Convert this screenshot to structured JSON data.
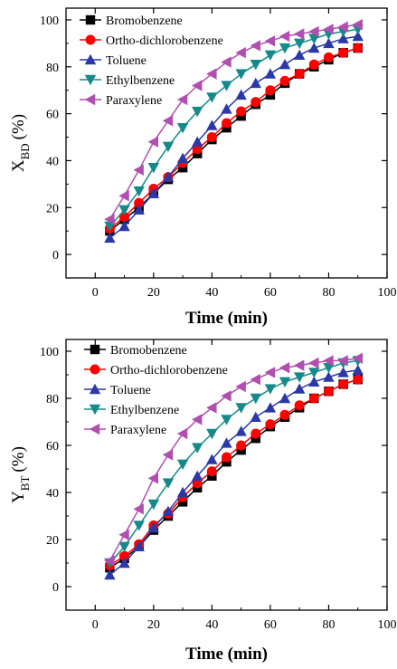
{
  "chart_data": [
    {
      "type": "line",
      "xlabel": "Time (min)",
      "ylabel_main": "X",
      "ylabel_sub": "BD",
      "ylabel_unit": "(%)",
      "xlim": [
        -10,
        100
      ],
      "ylim": [
        -10,
        105
      ],
      "xticks": [
        0,
        20,
        40,
        60,
        80,
        100
      ],
      "yticks": [
        0,
        20,
        40,
        60,
        80,
        100
      ],
      "legend_position": "top-left",
      "x": [
        5,
        10,
        15,
        20,
        25,
        30,
        35,
        40,
        45,
        50,
        55,
        60,
        65,
        70,
        75,
        80,
        85,
        90
      ],
      "series": [
        {
          "name": "Bromobenzene",
          "marker": "square",
          "color": "#000000",
          "values": [
            10,
            15,
            20,
            26,
            32,
            37,
            43,
            49,
            54,
            59,
            64,
            68,
            73,
            77,
            80,
            83,
            86,
            88
          ]
        },
        {
          "name": "Ortho-dichlorobenzene",
          "marker": "circle",
          "color": "#ff0000",
          "values": [
            11,
            16,
            22,
            28,
            33,
            39,
            45,
            50,
            56,
            61,
            65,
            70,
            74,
            77,
            81,
            84,
            86,
            88
          ]
        },
        {
          "name": "Toluene",
          "marker": "triangle-up",
          "color": "#2b39a6",
          "values": [
            7,
            12,
            19,
            26,
            33,
            41,
            48,
            55,
            62,
            68,
            73,
            77,
            81,
            85,
            88,
            90,
            92,
            93
          ]
        },
        {
          "name": "Ethylbenzene",
          "marker": "triangle-down",
          "color": "#168a8a",
          "values": [
            12,
            19,
            27,
            37,
            46,
            54,
            61,
            67,
            72,
            77,
            81,
            85,
            88,
            90,
            92,
            94,
            95,
            96
          ]
        },
        {
          "name": "Paraxylene",
          "marker": "triangle-left",
          "color": "#b04fb0",
          "values": [
            15,
            25,
            36,
            48,
            57,
            66,
            72,
            77,
            82,
            86,
            89,
            91,
            93,
            94,
            95,
            96,
            97,
            98
          ]
        }
      ]
    },
    {
      "type": "line",
      "xlabel": "Time (min)",
      "ylabel_main": "Y",
      "ylabel_sub": "BT",
      "ylabel_unit": "(%)",
      "xlim": [
        -10,
        100
      ],
      "ylim": [
        -10,
        105
      ],
      "xticks": [
        0,
        20,
        40,
        60,
        80,
        100
      ],
      "yticks": [
        0,
        20,
        40,
        60,
        80,
        100
      ],
      "legend_position": "top-left",
      "x": [
        5,
        10,
        15,
        20,
        25,
        30,
        35,
        40,
        45,
        50,
        55,
        60,
        65,
        70,
        75,
        80,
        85,
        90
      ],
      "series": [
        {
          "name": "Bromobenzene",
          "marker": "square",
          "color": "#000000",
          "values": [
            8,
            12,
            17,
            24,
            30,
            36,
            42,
            47,
            53,
            58,
            63,
            68,
            72,
            76,
            80,
            83,
            86,
            88
          ]
        },
        {
          "name": "Ortho-dichlorobenzene",
          "marker": "circle",
          "color": "#ff0000",
          "values": [
            9,
            13,
            18,
            26,
            31,
            38,
            44,
            49,
            55,
            60,
            65,
            69,
            73,
            77,
            80,
            83,
            86,
            88
          ]
        },
        {
          "name": "Toluene",
          "marker": "triangle-up",
          "color": "#2b39a6",
          "values": [
            5,
            10,
            17,
            25,
            32,
            40,
            47,
            54,
            61,
            66,
            72,
            76,
            80,
            84,
            87,
            89,
            91,
            92
          ]
        },
        {
          "name": "Ethylbenzene",
          "marker": "triangle-down",
          "color": "#168a8a",
          "values": [
            10,
            17,
            26,
            35,
            44,
            52,
            59,
            65,
            71,
            76,
            80,
            84,
            87,
            89,
            91,
            93,
            95,
            96
          ]
        },
        {
          "name": "Paraxylene",
          "marker": "triangle-left",
          "color": "#b04fb0",
          "values": [
            11,
            22,
            33,
            46,
            56,
            65,
            71,
            76,
            81,
            85,
            88,
            91,
            93,
            94,
            95,
            96,
            96,
            97
          ]
        }
      ]
    }
  ]
}
